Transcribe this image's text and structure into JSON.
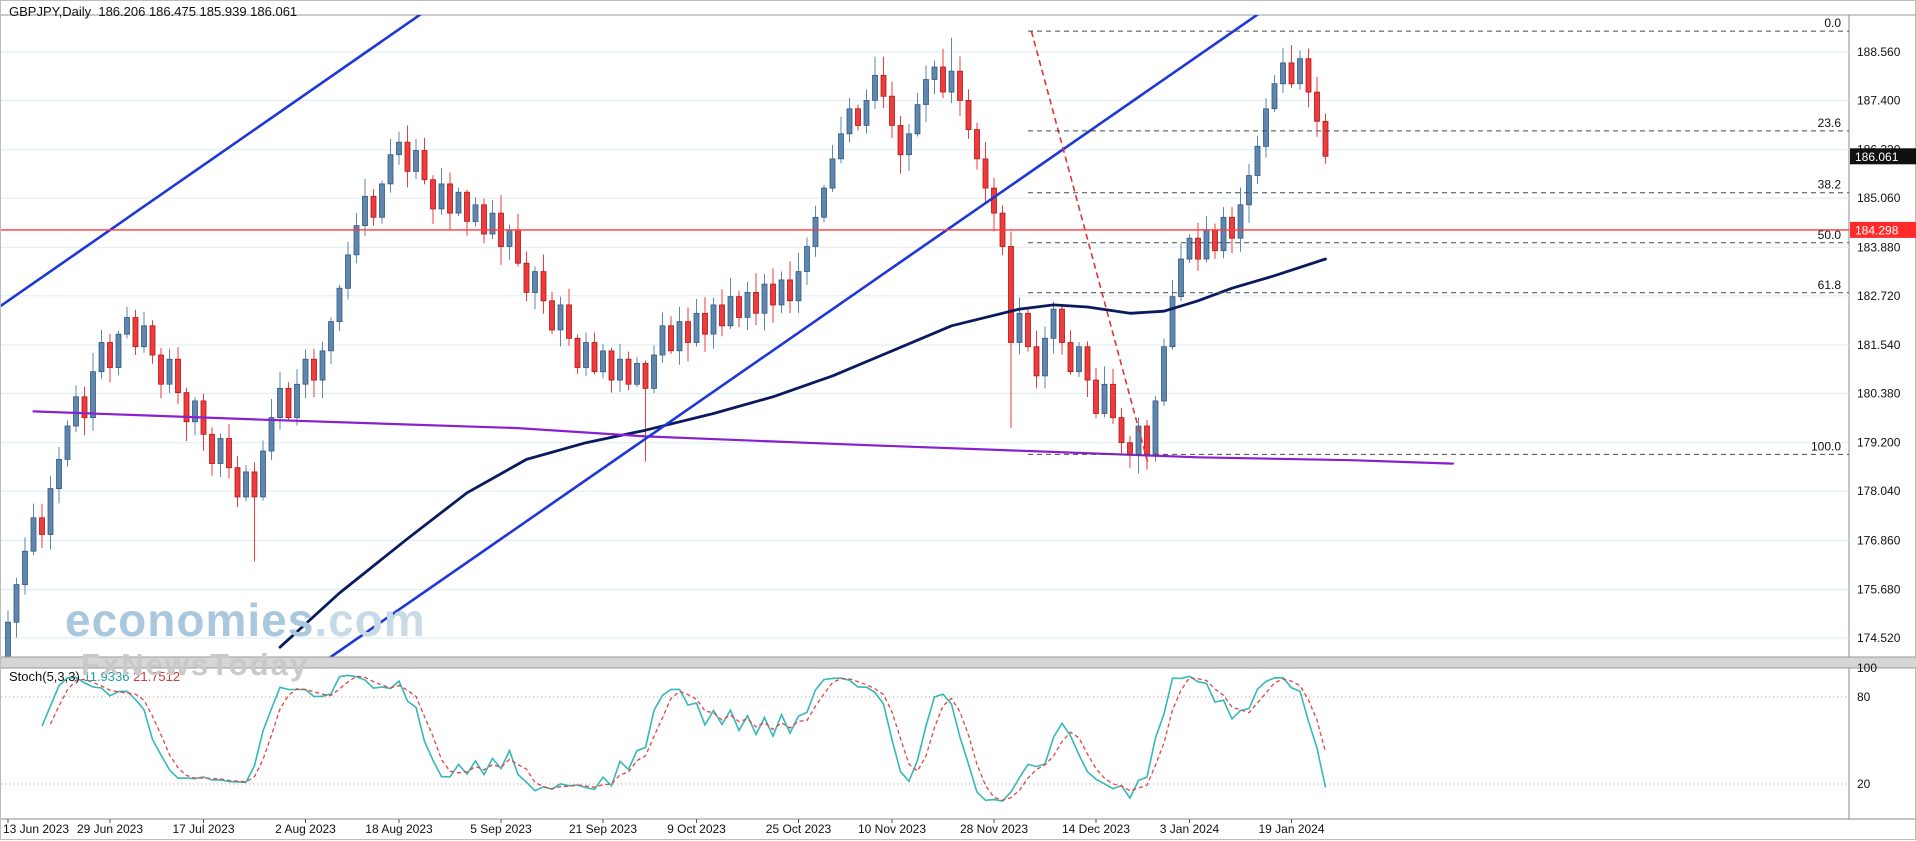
{
  "header": {
    "title": "GBPJPY,Daily  186.206 186.475 185.939 186.061"
  },
  "watermark": {
    "brand": "economies",
    "suffix": ".com",
    "subtitle": "FxNewsToday"
  },
  "colors": {
    "up_candle": "#5e87b0",
    "up_border": "#35597f",
    "down_candle": "#ef3b3b",
    "down_border": "#b01818",
    "grid": "#d9edf2",
    "red_line": "#ff3939",
    "badge_red_bg": "#ff2b2b",
    "badge_black_bg": "#101010",
    "fib_line": "#4a4a4a",
    "stoch_k": "#35b8b8",
    "stoch_d": "#e04545",
    "level_line": "#c89090"
  },
  "chart_data": {
    "type": "candlestick",
    "symbol": "GBPJPY",
    "timeframe": "Daily",
    "quote": {
      "open": "186.206",
      "high": "186.475",
      "low": "185.939",
      "close": "186.061"
    },
    "current_price": 186.061,
    "horizontal_line_price": 184.298,
    "price_axis": {
      "labels": [
        188.56,
        187.4,
        186.22,
        185.06,
        183.88,
        182.72,
        181.54,
        180.38,
        179.2,
        178.04,
        176.86,
        175.68,
        174.52
      ]
    },
    "x_ticks": [
      {
        "label": "13 Jun 2023",
        "index": 0
      },
      {
        "label": "29 Jun 2023",
        "index": 12
      },
      {
        "label": "17 Jul 2023",
        "index": 23
      },
      {
        "label": "2 Aug 2023",
        "index": 35
      },
      {
        "label": "18 Aug 2023",
        "index": 46
      },
      {
        "label": "5 Sep 2023",
        "index": 58
      },
      {
        "label": "21 Sep 2023",
        "index": 70
      },
      {
        "label": "9 Oct 2023",
        "index": 81
      },
      {
        "label": "25 Oct 2023",
        "index": 93
      },
      {
        "label": "10 Nov 2023",
        "index": 104
      },
      {
        "label": "28 Nov 2023",
        "index": 116
      },
      {
        "label": "14 Dec 2023",
        "index": 128
      },
      {
        "label": "3 Jan 2024",
        "index": 139
      },
      {
        "label": "19 Jan 2024",
        "index": 151
      }
    ],
    "candles": {
      "first_open": 174.0,
      "closes": [
        174.9,
        175.8,
        176.6,
        177.4,
        177.0,
        178.1,
        178.8,
        179.6,
        180.3,
        179.8,
        180.9,
        181.6,
        181.0,
        181.8,
        182.2,
        181.5,
        182.0,
        181.3,
        180.6,
        181.2,
        180.4,
        179.7,
        180.2,
        179.4,
        178.7,
        179.3,
        178.6,
        177.9,
        178.5,
        177.9,
        179.0,
        179.8,
        180.5,
        179.8,
        180.6,
        181.2,
        180.7,
        181.4,
        182.1,
        182.9,
        183.7,
        184.4,
        185.1,
        184.6,
        185.4,
        186.1,
        186.4,
        185.7,
        186.2,
        185.5,
        184.8,
        185.4,
        184.7,
        185.2,
        184.5,
        184.9,
        184.2,
        184.7,
        183.9,
        184.3,
        183.5,
        182.8,
        183.3,
        182.6,
        181.9,
        182.5,
        181.7,
        181.0,
        181.6,
        180.9,
        181.4,
        180.7,
        181.2,
        180.6,
        181.1,
        180.5,
        181.3,
        182.0,
        181.4,
        182.1,
        181.6,
        182.3,
        181.8,
        182.5,
        182.0,
        182.7,
        182.2,
        182.8,
        182.3,
        183.0,
        182.5,
        183.1,
        182.6,
        183.3,
        183.9,
        184.6,
        185.3,
        186.0,
        186.6,
        187.2,
        186.8,
        187.4,
        188.0,
        187.5,
        186.8,
        186.1,
        186.6,
        187.3,
        187.9,
        188.2,
        187.6,
        188.1,
        187.4,
        186.7,
        186.0,
        185.3,
        184.7,
        183.9,
        181.6,
        182.3,
        181.5,
        180.8,
        181.7,
        182.4,
        181.6,
        180.9,
        181.5,
        180.7,
        179.9,
        180.6,
        179.8,
        179.2,
        178.9,
        179.6,
        178.9,
        180.2,
        181.5,
        182.7,
        183.6,
        184.1,
        183.6,
        184.3,
        183.8,
        184.6,
        184.1,
        184.9,
        185.6,
        186.3,
        187.2,
        187.8,
        188.3,
        187.8,
        188.4,
        187.6,
        186.9,
        186.061
      ],
      "wick_overrides": {
        "0": {
          "low": 174.1
        },
        "29": {
          "low": 176.35
        },
        "75": {
          "low": 178.75
        },
        "102": {
          "high": 188.45
        },
        "111": {
          "high": 188.9
        },
        "118": {
          "low": 179.55
        },
        "132": {
          "low": 178.6
        },
        "134": {
          "low": 178.55
        },
        "150": {
          "high": 188.65
        },
        "152": {
          "high": 188.6
        }
      }
    },
    "fibonacci": {
      "start_index": 120,
      "levels": [
        {
          "label": "0.0",
          "price": 189.06
        },
        {
          "label": "23.6",
          "price": 186.67
        },
        {
          "label": "38.2",
          "price": 185.19
        },
        {
          "label": "50.0",
          "price": 183.99
        },
        {
          "label": "61.8",
          "price": 182.79
        },
        {
          "label": "100.0",
          "price": 178.92
        }
      ]
    },
    "moving_averages": [
      {
        "name": "slow-ma-navy",
        "color": "#0a1a5e",
        "width": 2.8,
        "points": [
          [
            32,
            174.3
          ],
          [
            39,
            175.6
          ],
          [
            47,
            176.9
          ],
          [
            54,
            178.0
          ],
          [
            61,
            178.8
          ],
          [
            68,
            179.2
          ],
          [
            75,
            179.5
          ],
          [
            83,
            179.9
          ],
          [
            90,
            180.3
          ],
          [
            97,
            180.8
          ],
          [
            104,
            181.4
          ],
          [
            111,
            182.0
          ],
          [
            119,
            182.4
          ],
          [
            123,
            182.5
          ],
          [
            127,
            182.45
          ],
          [
            132,
            182.3
          ],
          [
            136,
            182.35
          ],
          [
            140,
            182.6
          ],
          [
            144,
            182.9
          ],
          [
            149,
            183.2
          ],
          [
            155,
            183.6
          ]
        ]
      },
      {
        "name": "long-ma-purple",
        "color": "#8a1fd0",
        "width": 2.2,
        "points": [
          [
            3,
            179.95
          ],
          [
            30,
            179.75
          ],
          [
            60,
            179.55
          ],
          [
            75,
            179.35
          ],
          [
            100,
            179.15
          ],
          [
            120,
            179.0
          ],
          [
            140,
            178.85
          ],
          [
            158,
            178.78
          ],
          [
            170,
            178.7
          ]
        ]
      }
    ],
    "trendlines": [
      {
        "name": "channel-line-main",
        "color": "#1f36d8",
        "width": 2.6,
        "i1": 36.3,
        "p1": 173.83,
        "i2": 147.3,
        "p2": 189.5
      },
      {
        "name": "channel-line-upper",
        "color": "#1f36d8",
        "width": 2.6,
        "i1": -0.9,
        "p1": 182.47,
        "i2": 48.8,
        "p2": 189.5
      },
      {
        "name": "steep-trendline-red-dashed",
        "color": "#e03535",
        "width": 1.6,
        "dash": "6 4",
        "i1": 120.4,
        "p1": 189.06,
        "i2": 134.1,
        "p2": 178.72
      }
    ],
    "stochastic": {
      "name": "Stoch(5,3,3)",
      "k_value": "11.9336",
      "d_value": "21.7512",
      "levels": [
        80,
        20
      ],
      "scale_labels": [
        100,
        80,
        20
      ]
    }
  }
}
